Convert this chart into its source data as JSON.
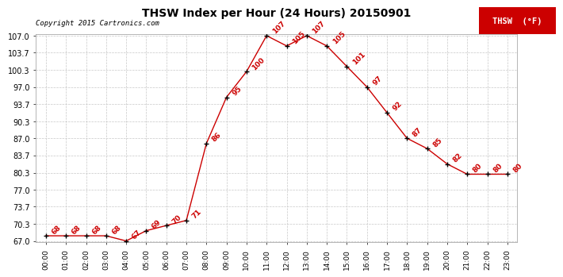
{
  "title": "THSW Index per Hour (24 Hours) 20150901",
  "copyright": "Copyright 2015 Cartronics.com",
  "legend_label": "THSW  (°F)",
  "hours": [
    "00:00",
    "01:00",
    "02:00",
    "03:00",
    "04:00",
    "05:00",
    "06:00",
    "07:00",
    "08:00",
    "09:00",
    "10:00",
    "11:00",
    "12:00",
    "13:00",
    "14:00",
    "15:00",
    "16:00",
    "17:00",
    "18:00",
    "19:00",
    "20:00",
    "21:00",
    "22:00",
    "23:00"
  ],
  "values": [
    68,
    68,
    68,
    68,
    67,
    69,
    70,
    71,
    86,
    95,
    100,
    107,
    105,
    107,
    105,
    101,
    97,
    92,
    87,
    85,
    82,
    80,
    80,
    80
  ],
  "ymin": 67.0,
  "ymax": 107.0,
  "yticks": [
    67.0,
    70.3,
    73.7,
    77.0,
    80.3,
    83.7,
    87.0,
    90.3,
    93.7,
    97.0,
    100.3,
    103.7,
    107.0
  ],
  "line_color": "#cc0000",
  "marker_color": "#000000",
  "bg_color": "#ffffff",
  "grid_color": "#c8c8c8",
  "title_color": "#000000",
  "copyright_color": "#000000",
  "legend_bg": "#cc0000",
  "legend_text_color": "#ffffff"
}
